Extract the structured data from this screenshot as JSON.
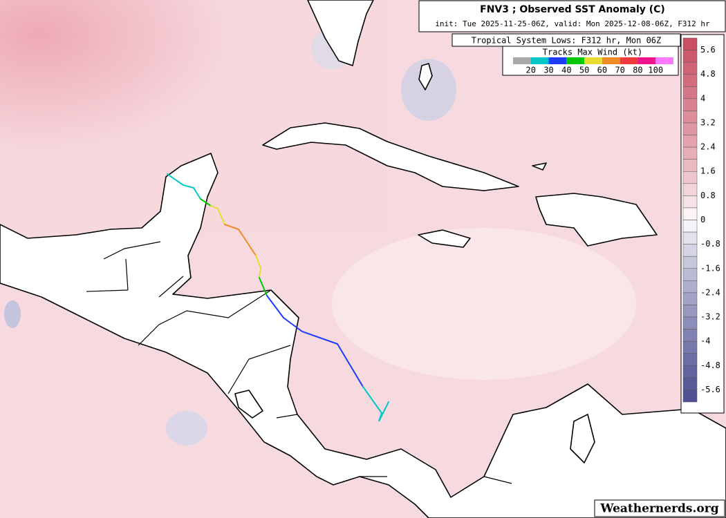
{
  "header": {
    "title": "FNV3 ; Observed SST Anomaly (C)",
    "subtitle": "init: Tue 2025-11-25-06Z, valid: Mon 2025-12-08-06Z, F312 hr"
  },
  "tracks": {
    "heading": "Tropical System Lows: F312 hr, Mon 06Z",
    "legend_title": "Tracks Max Wind (kt)",
    "colors": [
      "#a8a8a8",
      "#00c8c8",
      "#1e3cff",
      "#00c800",
      "#e6dc32",
      "#f08c28",
      "#f03c3c",
      "#f0148c",
      "#ff78ff"
    ],
    "labels": [
      20,
      30,
      40,
      50,
      60,
      70,
      80,
      100
    ]
  },
  "colorbar": {
    "labels": [
      5.6,
      4.8,
      4,
      3.2,
      2.4,
      1.6,
      0.8,
      0,
      -0.8,
      -1.6,
      -2.4,
      -3.2,
      -4,
      -4.8,
      -5.6
    ],
    "high_color": "#c94a60",
    "low_color": "#4b4b90"
  },
  "watermark": "Weathernerds.org"
}
